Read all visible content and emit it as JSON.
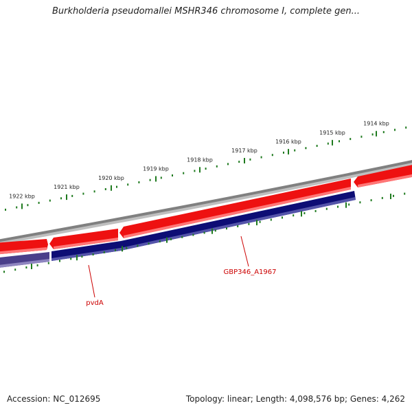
{
  "title": "Burkholderia pseudomallei MSHR346 chromosome I, complete gen...",
  "footer": {
    "accession": "Accession: NC_012695",
    "summary": "Topology: linear; Length: 4,098,576 bp; Genes: 4,262"
  },
  "colors": {
    "backbone": "#808080",
    "forward_gene": "#ee1111",
    "reverse_gene": "#0d0d75",
    "faded_reverse_gene": "#4a3f8a",
    "ticks": "#1e7a1e",
    "label": "#cc0000"
  },
  "scale": {
    "unit": "kbp",
    "labels": [
      "1922 kbp",
      "1921 kbp",
      "1920 kbp",
      "1919 kbp",
      "1918 kbp",
      "1917 kbp",
      "1916 kbp",
      "1915 kbp",
      "1914 kbp"
    ]
  },
  "gene_labels": [
    "pvdA",
    "GBP346_A1967"
  ]
}
